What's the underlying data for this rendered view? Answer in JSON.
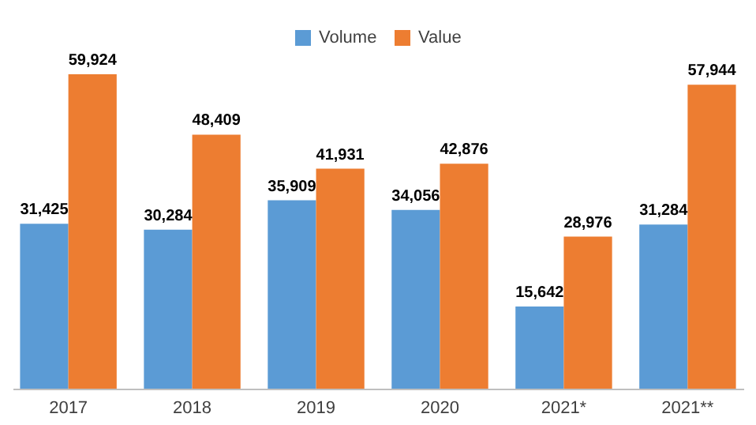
{
  "chart_data": {
    "type": "bar",
    "categories": [
      "2017",
      "2018",
      "2019",
      "2020",
      "2021*",
      "2021**"
    ],
    "series": [
      {
        "name": "Volume",
        "color": "#5b9bd5",
        "values": [
          31425,
          30284,
          35909,
          34056,
          15642,
          31284
        ],
        "value_labels": [
          "31,425",
          "30,284",
          "35,909",
          "34,056",
          "15,642",
          "31,284"
        ]
      },
      {
        "name": "Value",
        "color": "#ed7d31",
        "values": [
          59924,
          48409,
          41931,
          42876,
          28976,
          57944
        ],
        "value_labels": [
          "59,924",
          "48,409",
          "41,931",
          "42,876",
          "28,976",
          "57,944"
        ]
      }
    ],
    "legend": "top"
  }
}
